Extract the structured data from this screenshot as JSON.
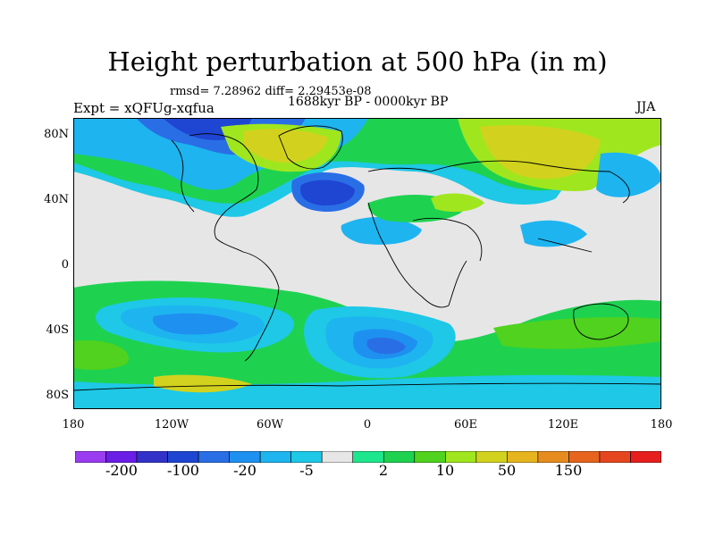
{
  "title": "Height perturbation at 500 hPa (in m)",
  "subtitle": "rmsd= 7.28962 diff= 2.29453e-08",
  "center_string": "1688kyr BP - 0000kyr BP",
  "left_string": "Expt = xQFUg-xqfua",
  "right_string": "JJA",
  "lat_ticks": [
    "80N",
    "40N",
    "0",
    "40S",
    "80S"
  ],
  "lon_ticks": [
    "180",
    "120W",
    "60W",
    "0",
    "60E",
    "120E",
    "180"
  ],
  "colorbar": {
    "colors": [
      "#9a3cf0",
      "#6a1ee6",
      "#3232c8",
      "#1e46d2",
      "#2a6ee6",
      "#1e90f0",
      "#1eb4f0",
      "#1ec8e6",
      "#e6e6e6",
      "#1ee68c",
      "#1ed250",
      "#50d21e",
      "#a0e61e",
      "#d2d21e",
      "#e6b41e",
      "#e68c1e",
      "#e6641e",
      "#e6461e",
      "#e61e1e"
    ],
    "labels": [
      "-200",
      "-100",
      "-20",
      "-5",
      "2",
      "10",
      "50",
      "150"
    ]
  }
}
